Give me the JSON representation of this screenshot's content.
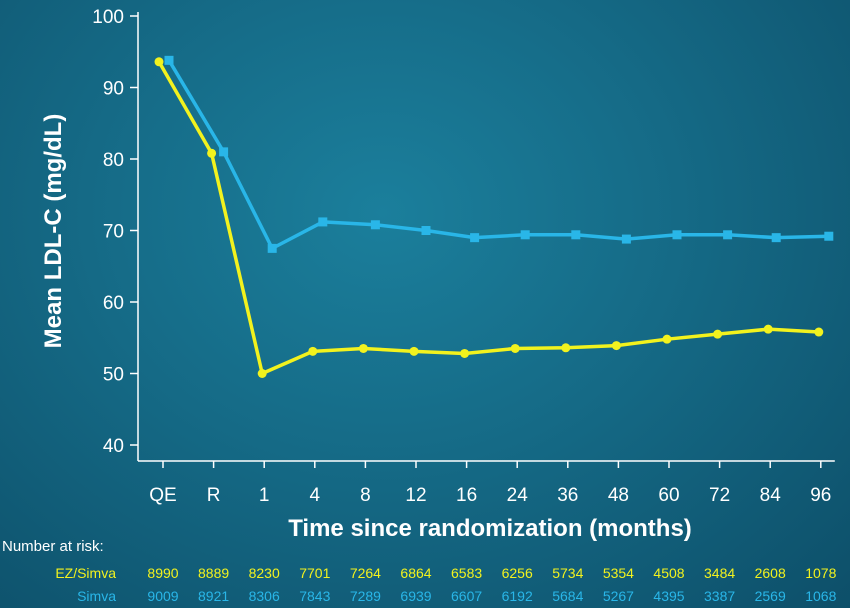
{
  "chart_data": {
    "type": "line",
    "title": "",
    "xlabel": "Time since randomization (months)",
    "ylabel": "Mean LDL-C (mg/dL)",
    "categories": [
      "QE",
      "R",
      "1",
      "4",
      "8",
      "12",
      "16",
      "24",
      "36",
      "48",
      "60",
      "72",
      "84",
      "96"
    ],
    "ylim": [
      40,
      100
    ],
    "yticks": [
      40,
      50,
      60,
      70,
      80,
      90,
      100
    ],
    "grid": false,
    "series": [
      {
        "name": "Simva",
        "color": "#29b6e8",
        "marker": "square",
        "values": [
          93.8,
          81.0,
          67.5,
          71.2,
          70.8,
          70.0,
          69.0,
          69.4,
          69.4,
          68.8,
          69.4,
          69.4,
          69.0,
          69.2
        ]
      },
      {
        "name": "EZ/Simva",
        "color": "#f2f21e",
        "marker": "circle",
        "values": [
          93.6,
          80.8,
          50.0,
          53.1,
          53.5,
          53.1,
          52.8,
          53.5,
          53.6,
          53.9,
          54.8,
          55.5,
          56.2,
          55.8
        ]
      }
    ]
  },
  "at_risk": {
    "title": "Number at risk:",
    "rows": [
      {
        "name": "EZ/Simva",
        "color": "#f2f21e",
        "values": [
          "8990",
          "8889",
          "8230",
          "7701",
          "7264",
          "6864",
          "6583",
          "6256",
          "5734",
          "5354",
          "4508",
          "3484",
          "2608",
          "1078"
        ]
      },
      {
        "name": "Simva",
        "color": "#29b6e8",
        "values": [
          "9009",
          "8921",
          "8306",
          "7843",
          "7289",
          "6939",
          "6607",
          "6192",
          "5684",
          "5267",
          "4395",
          "3387",
          "2569",
          "1068"
        ]
      }
    ]
  }
}
